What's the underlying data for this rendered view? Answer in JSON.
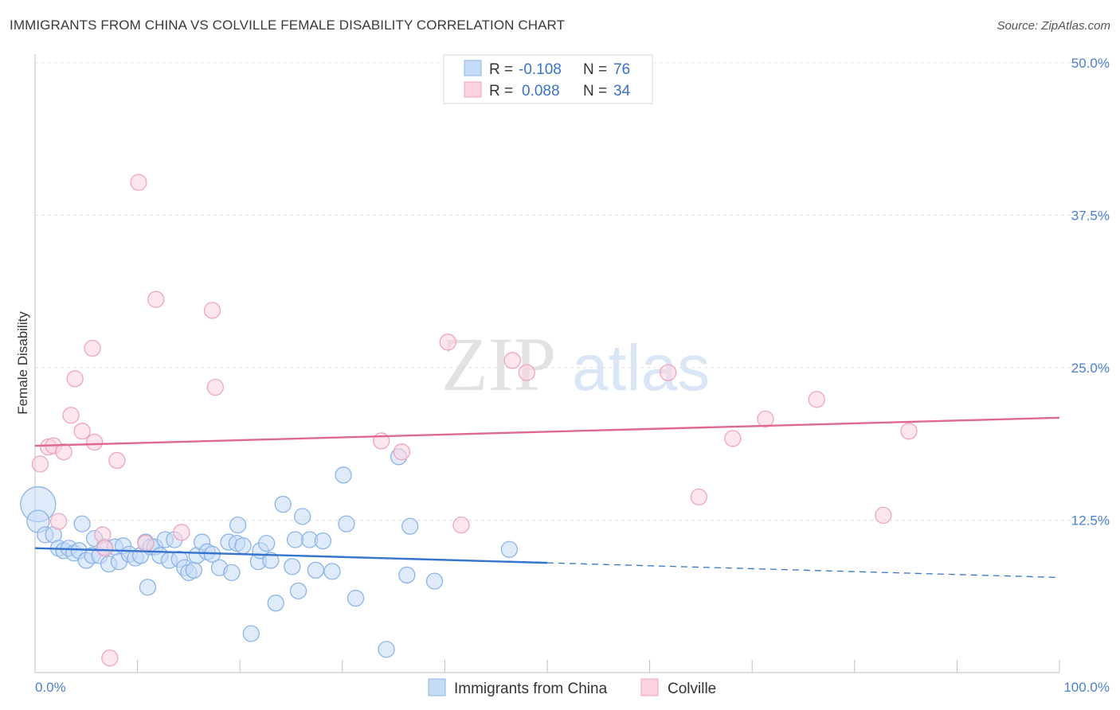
{
  "chart_data": {
    "type": "scatter",
    "title": "IMMIGRANTS FROM CHINA VS COLVILLE FEMALE DISABILITY CORRELATION CHART",
    "source": "Source: ZipAtlas.com",
    "ylabel": "Female Disability",
    "xlabel": "",
    "xlim": [
      0,
      100
    ],
    "ylim": [
      0,
      50
    ],
    "y_ticks": [
      {
        "value": 12.5,
        "label": "12.5%"
      },
      {
        "value": 25,
        "label": "25.0%"
      },
      {
        "value": 37.5,
        "label": "37.5%"
      },
      {
        "value": 50,
        "label": "50.0%"
      }
    ],
    "x_tick_labels": {
      "min": "0.0%",
      "max": "100.0%"
    },
    "watermark": {
      "zip": "ZIP",
      "atlas": "atlas"
    },
    "legend": {
      "r_label": "R =",
      "n_label": "N =",
      "entries": [
        {
          "r": "-0.108",
          "n": "76"
        },
        {
          "r": "0.088",
          "n": "34"
        }
      ]
    },
    "series": [
      {
        "name": "Immigrants from China",
        "color": "#8ab4ea",
        "fill": "#c6dbf6",
        "line_color": "#3574d0",
        "trend": {
          "x0": 0,
          "y0": 10.2,
          "x1": 50,
          "y1": 9.0,
          "dash_to": 100,
          "dash_y": 7.8
        },
        "points": [
          [
            0.3,
            13.8,
            22
          ],
          [
            0.3,
            12.4,
            14
          ],
          [
            1,
            11.3,
            10
          ],
          [
            1.8,
            11.3,
            10
          ],
          [
            2.3,
            10.2,
            10
          ],
          [
            2.8,
            10,
            10
          ],
          [
            3.3,
            10.2,
            10
          ],
          [
            3.8,
            9.8,
            10
          ],
          [
            4.3,
            10,
            10
          ],
          [
            4.6,
            12.2,
            10
          ],
          [
            5,
            9.2,
            10
          ],
          [
            5.6,
            9.6,
            10
          ],
          [
            5.8,
            11,
            10
          ],
          [
            6.3,
            9.6,
            10
          ],
          [
            6.8,
            10.3,
            10
          ],
          [
            7.2,
            8.9,
            10
          ],
          [
            7.8,
            10.3,
            10
          ],
          [
            8.2,
            9.1,
            10
          ],
          [
            8.6,
            10.4,
            10
          ],
          [
            9.2,
            9.7,
            10
          ],
          [
            9.8,
            9.4,
            10
          ],
          [
            10.3,
            9.6,
            10
          ],
          [
            10.8,
            10.7,
            10
          ],
          [
            11.3,
            10.3,
            10
          ],
          [
            11.0,
            7.0,
            10
          ],
          [
            11.7,
            10.3,
            10
          ],
          [
            12.2,
            9.6,
            10
          ],
          [
            12.7,
            10.9,
            10
          ],
          [
            13.1,
            9.2,
            10
          ],
          [
            13.6,
            10.9,
            10
          ],
          [
            14.1,
            9.3,
            10
          ],
          [
            14.6,
            8.6,
            10
          ],
          [
            15.0,
            8.2,
            10
          ],
          [
            15.5,
            8.4,
            10
          ],
          [
            15.8,
            9.6,
            10
          ],
          [
            16.3,
            10.7,
            10
          ],
          [
            16.8,
            9.9,
            10
          ],
          [
            17.3,
            9.7,
            10
          ],
          [
            18.0,
            8.6,
            10
          ],
          [
            18.9,
            10.7,
            10
          ],
          [
            19.2,
            8.2,
            10
          ],
          [
            19.7,
            10.6,
            10
          ],
          [
            19.8,
            12.1,
            10
          ],
          [
            20.3,
            10.4,
            10
          ],
          [
            21.1,
            3.2,
            10
          ],
          [
            21.8,
            9.1,
            10
          ],
          [
            22.0,
            10.0,
            10
          ],
          [
            22.6,
            10.6,
            10
          ],
          [
            23.0,
            9.2,
            10
          ],
          [
            23.5,
            5.7,
            10
          ],
          [
            24.2,
            13.8,
            10
          ],
          [
            25.1,
            8.7,
            10
          ],
          [
            25.4,
            10.9,
            10
          ],
          [
            25.7,
            6.7,
            10
          ],
          [
            26.1,
            12.8,
            10
          ],
          [
            26.8,
            10.9,
            10
          ],
          [
            27.4,
            8.4,
            10
          ],
          [
            28.1,
            10.8,
            10
          ],
          [
            29.0,
            8.3,
            10
          ],
          [
            30.1,
            16.2,
            10
          ],
          [
            30.4,
            12.2,
            10
          ],
          [
            31.3,
            6.1,
            10
          ],
          [
            34.3,
            1.9,
            10
          ],
          [
            35.5,
            17.7,
            10
          ],
          [
            36.6,
            12.0,
            10
          ],
          [
            36.3,
            8.0,
            10
          ],
          [
            39.0,
            7.5,
            10
          ],
          [
            46.3,
            10.1,
            10
          ]
        ]
      },
      {
        "name": "Colville",
        "color": "#f0a4bc",
        "fill": "#fbd3df",
        "line_color": "#e06890",
        "trend": {
          "x0": 0,
          "y0": 18.6,
          "x1": 100,
          "y1": 20.9
        },
        "points": [
          [
            0.5,
            17.1,
            10
          ],
          [
            1.3,
            18.5,
            10
          ],
          [
            1.8,
            18.6,
            10
          ],
          [
            2.3,
            12.4,
            10
          ],
          [
            2.8,
            18.1,
            10
          ],
          [
            3.5,
            21.1,
            10
          ],
          [
            3.9,
            24.1,
            10
          ],
          [
            4.6,
            19.8,
            10
          ],
          [
            5.6,
            26.6,
            10
          ],
          [
            5.8,
            18.9,
            10
          ],
          [
            6.6,
            11.3,
            10
          ],
          [
            6.8,
            10.2,
            10
          ],
          [
            7.3,
            1.2,
            10
          ],
          [
            8.0,
            17.4,
            10
          ],
          [
            10.1,
            40.2,
            10
          ],
          [
            10.8,
            10.6,
            10
          ],
          [
            11.8,
            30.6,
            10
          ],
          [
            14.3,
            11.5,
            10
          ],
          [
            17.3,
            29.7,
            10
          ],
          [
            17.6,
            23.4,
            10
          ],
          [
            33.8,
            19.0,
            10
          ],
          [
            35.8,
            18.1,
            10
          ],
          [
            40.3,
            27.1,
            10
          ],
          [
            41.6,
            12.1,
            10
          ],
          [
            46.6,
            25.6,
            10
          ],
          [
            48.0,
            24.6,
            10
          ],
          [
            61.8,
            24.6,
            10
          ],
          [
            64.8,
            14.4,
            10
          ],
          [
            68.1,
            19.2,
            10
          ],
          [
            71.3,
            20.8,
            10
          ],
          [
            76.3,
            22.4,
            10
          ],
          [
            82.8,
            12.9,
            10
          ],
          [
            85.3,
            19.8,
            10
          ]
        ]
      }
    ]
  }
}
